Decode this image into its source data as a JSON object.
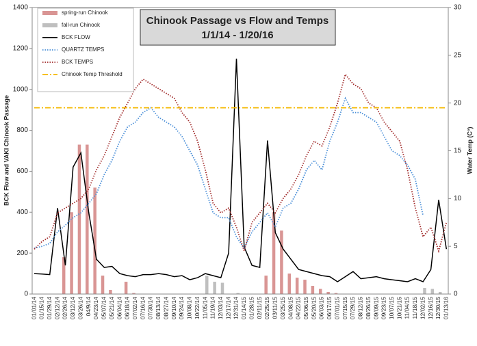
{
  "chart_data": {
    "type": "combo",
    "title": [
      "Chinook Passage vs Flow and Temps",
      "1/1/14 - 1/20/16"
    ],
    "ylabel": "BCK Flow and VAKI Chinook Passage",
    "y2label": "Water Temp (C°)",
    "categories": [
      "01/01/14",
      "01/15/14",
      "01/29/14",
      "02/12/14",
      "02/26/14",
      "03/12/14",
      "03/26/14",
      "04/9/14",
      "04/23/14",
      "05/07/14",
      "05/21/14",
      "06/04/14",
      "06/18/14",
      "07/02/14",
      "07/16/14",
      "07/30/14",
      "08/13/14",
      "08/27/14",
      "09/10/14",
      "09/24/14",
      "10/08/14",
      "10/22/14",
      "11/05/14",
      "11/19/14",
      "12/03/14",
      "12/17/14",
      "12/31/14",
      "01/14/15",
      "01/28/15",
      "02/11/15",
      "02/25/15",
      "03/11/15",
      "03/25/15",
      "04/08/15",
      "04/22/15",
      "05/06/15",
      "05/20/15",
      "06/03/15",
      "06/17/15",
      "07/01/15",
      "07/15/15",
      "07/29/15",
      "08/12/15",
      "08/26/15",
      "09/09/15",
      "09/23/15",
      "10/07/15",
      "10/21/15",
      "11/04/15",
      "11/18/15",
      "12/02/15",
      "12/16/15",
      "12/30/15",
      "01/13/16"
    ],
    "ylim": [
      0,
      1400
    ],
    "yticks": [
      0,
      200,
      400,
      600,
      800,
      1000,
      1200,
      1400
    ],
    "y2lim": [
      0,
      30
    ],
    "y2ticks": [
      0,
      5,
      10,
      15,
      20,
      25,
      30
    ],
    "series": [
      {
        "name": "spring-run Chinook",
        "type": "bar",
        "color": "#d99594",
        "values": [
          0,
          0,
          0,
          0,
          180,
          400,
          730,
          730,
          520,
          90,
          20,
          0,
          60,
          5,
          0,
          0,
          0,
          0,
          0,
          0,
          0,
          0,
          0,
          0,
          0,
          0,
          0,
          0,
          0,
          0,
          90,
          400,
          310,
          100,
          80,
          70,
          40,
          25,
          10,
          5,
          0,
          0,
          0,
          0,
          0,
          0,
          0,
          0,
          0,
          0,
          0,
          0,
          0,
          0
        ]
      },
      {
        "name": "fall-run Chinook",
        "type": "bar",
        "color": "#bfbfbf",
        "values": [
          0,
          0,
          0,
          0,
          0,
          0,
          0,
          0,
          0,
          0,
          0,
          0,
          0,
          0,
          0,
          0,
          0,
          0,
          0,
          0,
          0,
          0,
          90,
          60,
          55,
          0,
          5,
          0,
          0,
          0,
          0,
          0,
          0,
          0,
          0,
          0,
          0,
          0,
          0,
          0,
          0,
          0,
          0,
          0,
          0,
          0,
          0,
          0,
          0,
          0,
          30,
          25,
          10,
          0
        ]
      },
      {
        "name": "BCK FLOW",
        "type": "line",
        "color": "#000000",
        "style": "solid",
        "values": [
          100,
          98,
          95,
          420,
          140,
          620,
          690,
          400,
          170,
          130,
          135,
          100,
          90,
          85,
          95,
          95,
          100,
          95,
          85,
          90,
          70,
          80,
          100,
          90,
          80,
          200,
          1150,
          230,
          140,
          130,
          750,
          300,
          220,
          170,
          120,
          110,
          100,
          90,
          85,
          60,
          85,
          110,
          75,
          80,
          85,
          75,
          70,
          65,
          60,
          75,
          60,
          120,
          460,
          220
        ]
      },
      {
        "name": "QUARTZ TEMPS",
        "type": "line",
        "axis": "y2",
        "color": "#4a8fd8",
        "style": "dotted",
        "values": [
          4.8,
          5.0,
          5.3,
          6.5,
          7.2,
          8.0,
          8.5,
          9.5,
          10.5,
          12.5,
          14,
          16,
          17.5,
          18,
          19,
          19.5,
          18.5,
          18,
          17.5,
          16.5,
          15,
          13.5,
          11,
          8.5,
          8,
          8,
          6,
          4.8,
          6.5,
          7.5,
          8.5,
          7,
          9,
          9.5,
          11,
          13,
          14,
          13,
          16,
          18,
          20.5,
          19,
          19,
          18.5,
          18,
          16.5,
          15,
          14.5,
          13.5,
          12,
          8.2,
          null,
          null,
          null
        ]
      },
      {
        "name": "BCK TEMPS",
        "type": "line",
        "axis": "y2",
        "color": "#a02828",
        "style": "dotted",
        "values": [
          4.7,
          5.5,
          6,
          8.5,
          9,
          9.5,
          10,
          11,
          13,
          14.5,
          16.5,
          18.5,
          20,
          21.5,
          22.5,
          22,
          21.5,
          21,
          20.5,
          19,
          18,
          16,
          13,
          9.5,
          8.5,
          9,
          7,
          4.5,
          7.5,
          8.5,
          9.5,
          8.5,
          10,
          11,
          12.5,
          14.5,
          16,
          15.5,
          17.5,
          20,
          23,
          22,
          21.5,
          20,
          19.5,
          18,
          17,
          16,
          13,
          9,
          6,
          7,
          4.5,
          7.5
        ]
      },
      {
        "name": "Chinook Temp Threshold",
        "type": "line",
        "axis": "y2",
        "color": "#f5b800",
        "style": "dashdot",
        "values": [
          19.5,
          19.5,
          19.5,
          19.5,
          19.5,
          19.5,
          19.5,
          19.5,
          19.5,
          19.5,
          19.5,
          19.5,
          19.5,
          19.5,
          19.5,
          19.5,
          19.5,
          19.5,
          19.5,
          19.5,
          19.5,
          19.5,
          19.5,
          19.5,
          19.5,
          19.5,
          19.5,
          19.5,
          19.5,
          19.5,
          19.5,
          19.5,
          19.5,
          19.5,
          19.5,
          19.5,
          19.5,
          19.5,
          19.5,
          19.5,
          19.5,
          19.5,
          19.5,
          19.5,
          19.5,
          19.5,
          19.5,
          19.5,
          19.5,
          19.5,
          19.5,
          19.5,
          19.5,
          19.5
        ]
      }
    ]
  }
}
